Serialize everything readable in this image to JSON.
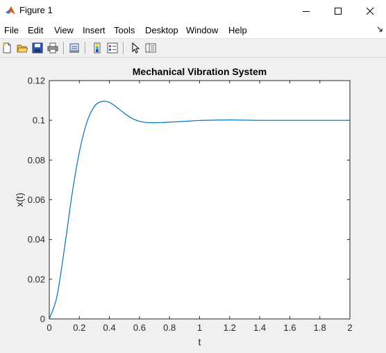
{
  "window": {
    "title": "Figure 1",
    "controls": {
      "minimize": "minimize",
      "maximize": "maximize",
      "close": "close"
    }
  },
  "menu": [
    "File",
    "Edit",
    "View",
    "Insert",
    "Tools",
    "Desktop",
    "Window",
    "Help"
  ],
  "toolbar": [
    "new-figure-icon",
    "open-file-icon",
    "save-icon",
    "print-icon",
    "link-plot-icon",
    "insert-colorbar-icon",
    "insert-legend-icon",
    "edit-plot-icon",
    "property-inspector-icon"
  ],
  "chart_data": {
    "type": "line",
    "title": "Mechanical Vibration System",
    "xlabel": "t",
    "ylabel": "x(t)",
    "xlim": [
      0,
      2
    ],
    "ylim": [
      0,
      0.12
    ],
    "xticks": [
      "0",
      "0.2",
      "0.4",
      "0.6",
      "0.8",
      "1",
      "1.2",
      "1.4",
      "1.6",
      "1.8",
      "2"
    ],
    "yticks": [
      "0",
      "0.02",
      "0.04",
      "0.06",
      "0.08",
      "0.1",
      "0.12"
    ],
    "grid": false,
    "line_color": "#0072bd",
    "series": [
      {
        "x": [
          0,
          0.05,
          0.1,
          0.15,
          0.2,
          0.25,
          0.3,
          0.35,
          0.4,
          0.45,
          0.5,
          0.55,
          0.6,
          0.65,
          0.7,
          0.75,
          0.8,
          0.9,
          1.0,
          1.1,
          1.2,
          1.3,
          1.4,
          1.6,
          1.8,
          2.0
        ],
        "y": [
          0,
          0.011,
          0.035,
          0.062,
          0.084,
          0.099,
          0.107,
          0.1095,
          0.109,
          0.1065,
          0.1035,
          0.101,
          0.0995,
          0.0989,
          0.0988,
          0.0989,
          0.0991,
          0.0995,
          0.0999,
          0.1001,
          0.1002,
          0.1001,
          0.1,
          0.1,
          0.1,
          0.1
        ]
      }
    ]
  }
}
